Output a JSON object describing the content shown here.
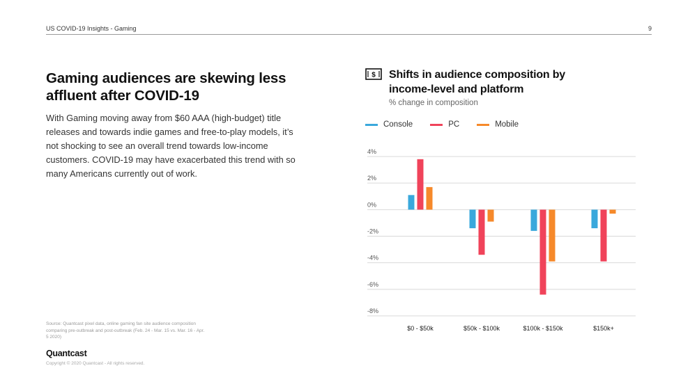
{
  "header": {
    "section": "US COVID-19 Insights - Gaming",
    "page_number": "9"
  },
  "headline": "Gaming audiences are skewing less affluent after COVID-19",
  "body_text": "With Gaming moving away from $60 AAA (high-budget) title releases and towards indie games and free-to-play models, it’s not shocking to see an overall trend towards low-income customers. COVID-19 may have exacerbated this trend with so many Americans currently out of work.",
  "source_note": "Source: Quantcast pixel data, online gaming fan site audience composition comparing pre-outbreak and post-outbreak (Feb. 24 - Mar. 15 vs. Mar. 16 - Apr. 5 2020)",
  "footer": {
    "logo": "Quantcast",
    "copyright": "Copyright © 2020 Quantcast - All rights reserved."
  },
  "icon": "dollar-bill-icon",
  "colors": {
    "console": "#3aa8dc",
    "pc": "#f0435a",
    "mobile": "#f6892a",
    "grid": "#d9d9d9",
    "axis_text": "#555555"
  },
  "chart_data": {
    "type": "bar",
    "title": "Shifts in audience composition by income-level and platform",
    "subtitle": "% change in composition",
    "categories": [
      "$0 - $50k",
      "$50k - $100k",
      "$100k - $150k",
      "$150k+"
    ],
    "series": [
      {
        "name": "Console",
        "values": [
          1.1,
          -1.4,
          -1.6,
          -1.4
        ]
      },
      {
        "name": "PC",
        "values": [
          3.8,
          -3.4,
          -6.4,
          -3.9
        ]
      },
      {
        "name": "Mobile",
        "values": [
          1.7,
          -0.9,
          -3.9,
          -0.3
        ]
      }
    ],
    "yticks": [
      4,
      2,
      0,
      -2,
      -4,
      -6,
      -8
    ],
    "ytick_labels": [
      "4%",
      "2%",
      "0%",
      "-2%",
      "-4%",
      "-6%",
      "-8%"
    ],
    "ylim": [
      -8,
      4
    ],
    "legend_position": "top-left",
    "grid": true
  }
}
